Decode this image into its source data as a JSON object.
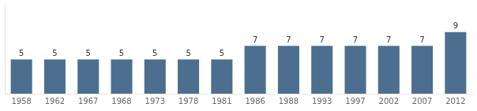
{
  "chart_data": {
    "type": "bar",
    "categories": [
      "1958",
      "1962",
      "1967",
      "1968",
      "1973",
      "1978",
      "1981",
      "1986",
      "1988",
      "1993",
      "1997",
      "2002",
      "2007",
      "2012"
    ],
    "values": [
      5,
      5,
      5,
      5,
      5,
      5,
      5,
      7,
      7,
      7,
      7,
      7,
      7,
      9
    ],
    "color": "#4d6f8f",
    "ylim": [
      0,
      13.0
    ],
    "grid": false,
    "tick_labels": "x",
    "data_labels": true
  }
}
